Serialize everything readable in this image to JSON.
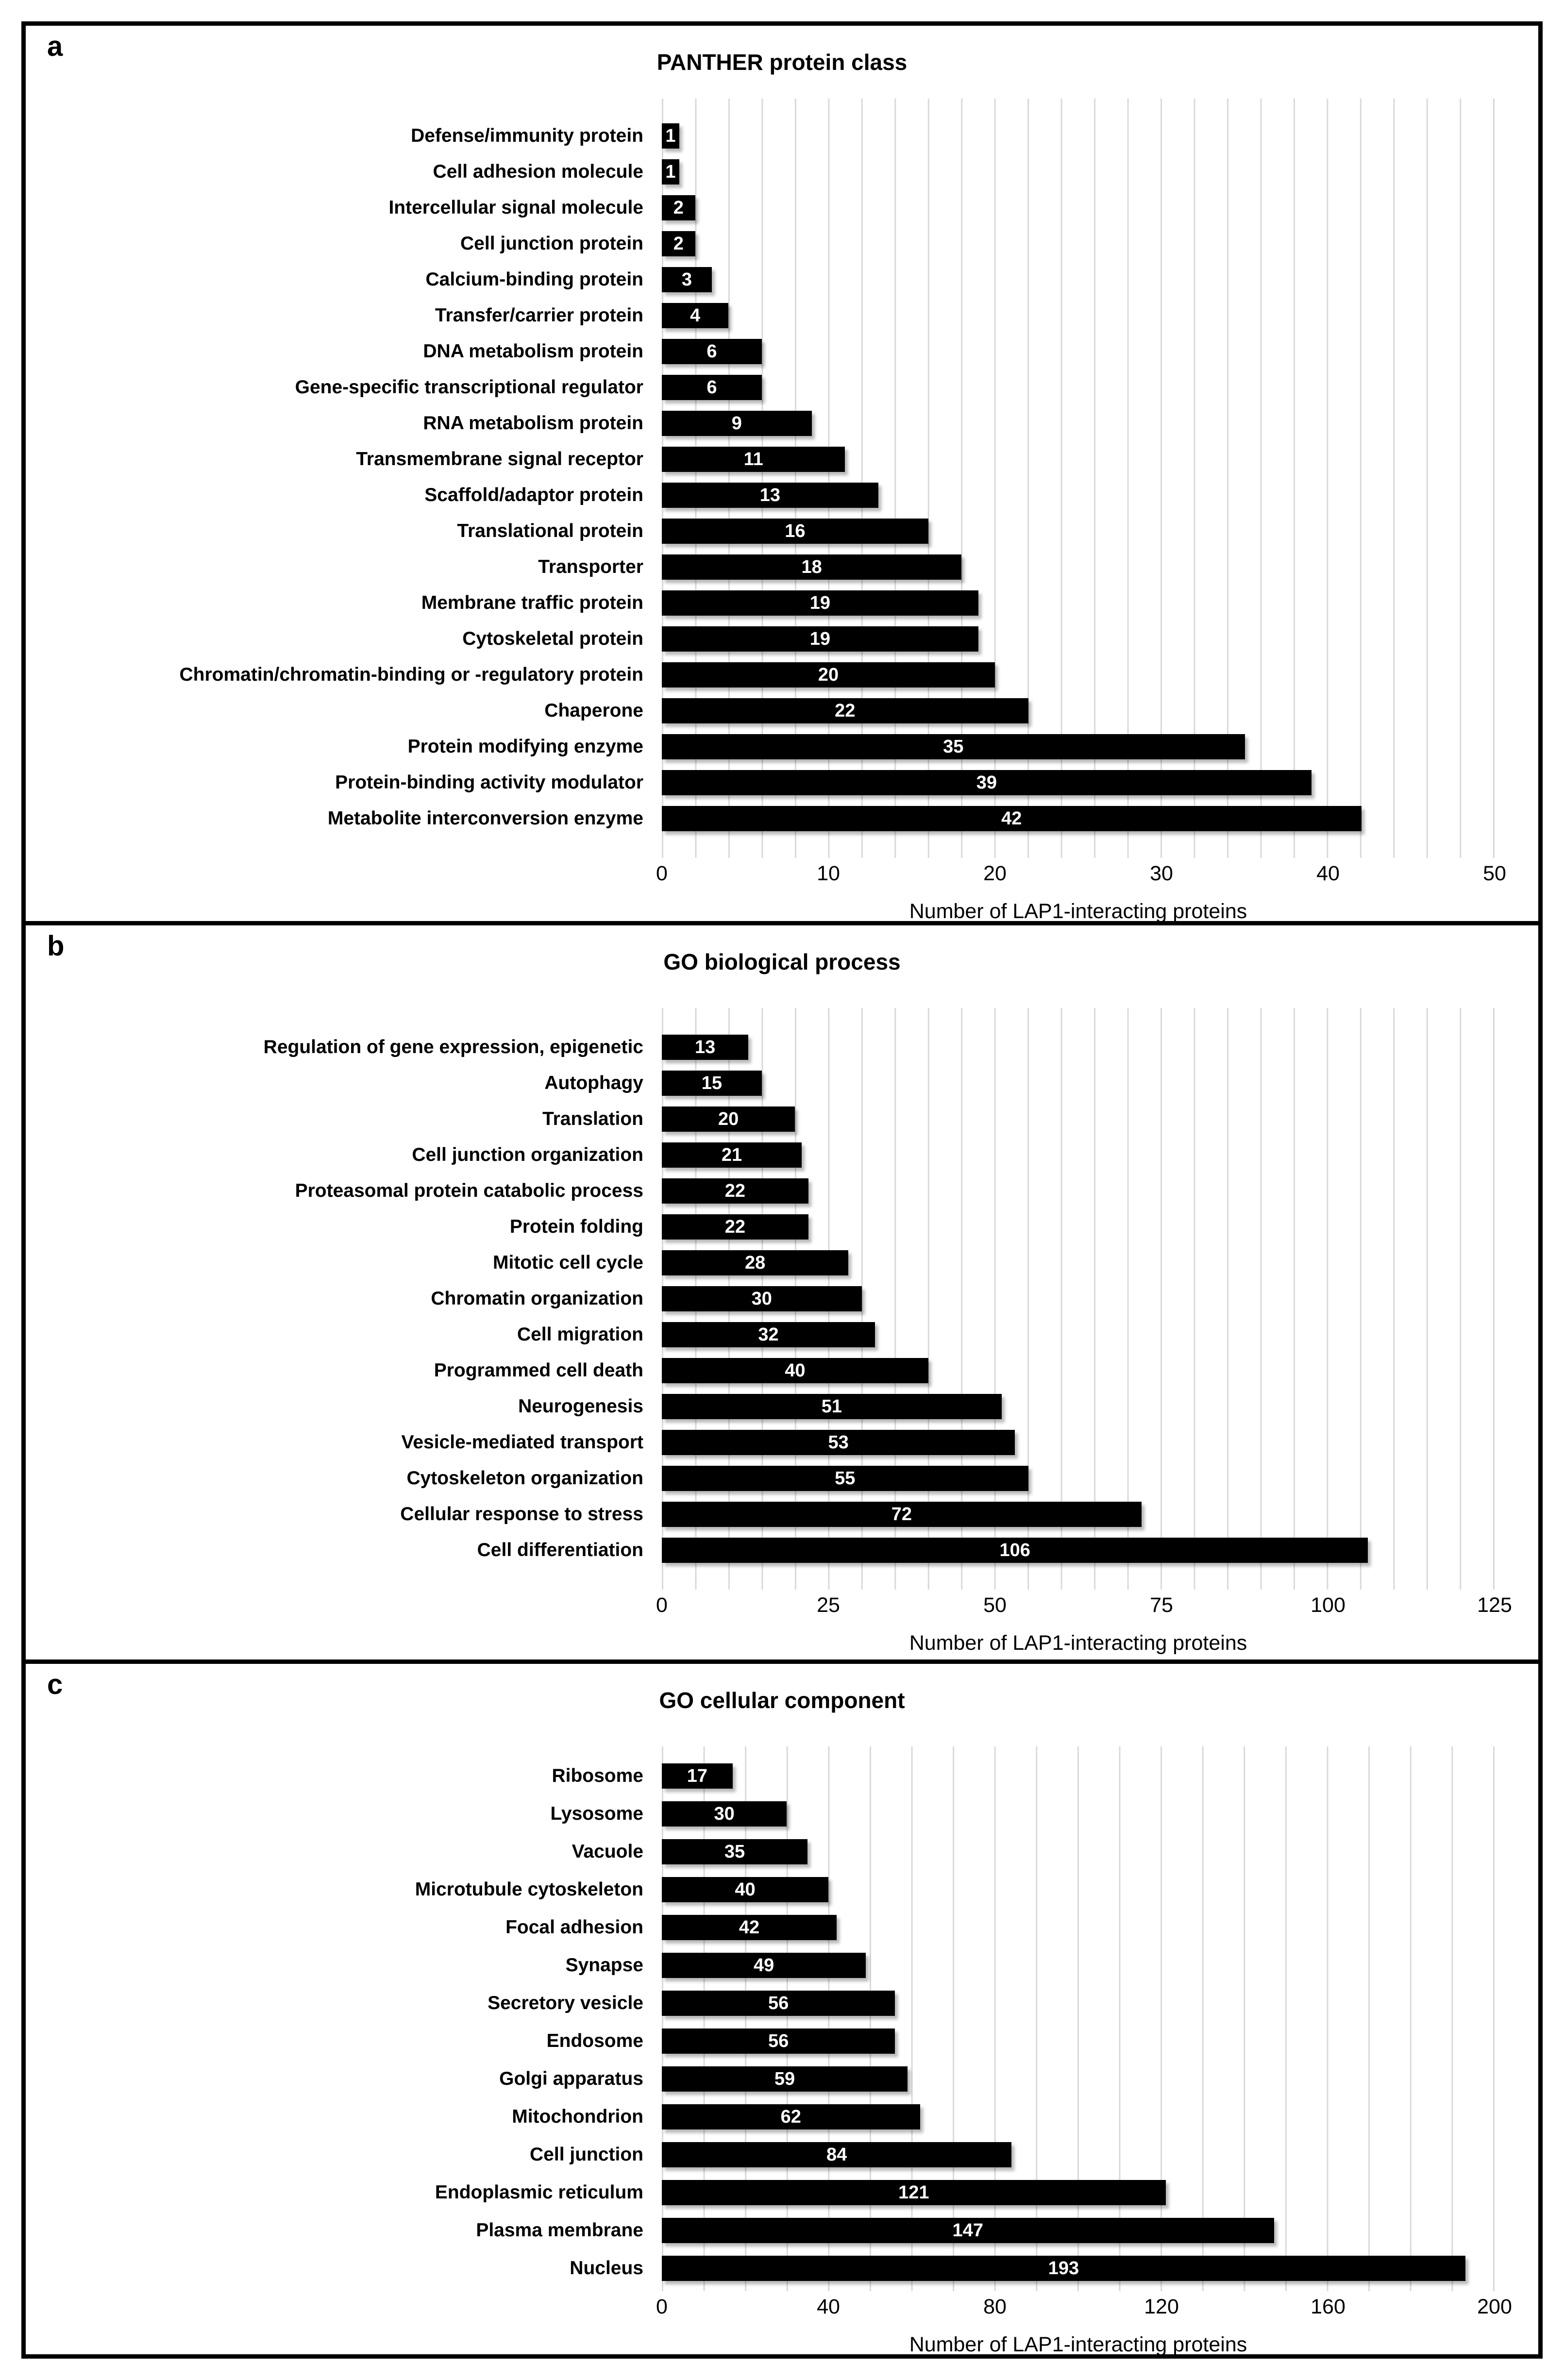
{
  "chart_data": [
    {
      "panel_letter": "a",
      "type": "bar",
      "orientation": "horizontal",
      "title": "PANTHER protein class",
      "xlabel": "Number of LAP1-interacting proteins",
      "xlim": [
        0,
        50
      ],
      "xticks": [
        0,
        10,
        20,
        30,
        40,
        50
      ],
      "minor_gridline_step": 2,
      "grid": "vertical-minor",
      "bar_color": "#000000",
      "value_label_color": "#ffffff",
      "categories": [
        "Defense/immunity protein",
        "Cell adhesion molecule",
        "Intercellular signal molecule",
        "Cell junction protein",
        "Calcium-binding protein",
        "Transfer/carrier protein",
        "DNA metabolism protein",
        "Gene-specific transcriptional regulator",
        "RNA metabolism protein",
        "Transmembrane signal receptor",
        "Scaffold/adaptor protein",
        "Translational protein",
        "Transporter",
        "Membrane traffic protein",
        "Cytoskeletal protein",
        "Chromatin/chromatin-binding or -regulatory protein",
        "Chaperone",
        "Protein modifying enzyme",
        "Protein-binding activity modulator",
        "Metabolite interconversion enzyme"
      ],
      "values": [
        1,
        1,
        2,
        2,
        3,
        4,
        6,
        6,
        9,
        11,
        13,
        16,
        18,
        19,
        19,
        20,
        22,
        35,
        39,
        42
      ]
    },
    {
      "panel_letter": "b",
      "type": "bar",
      "orientation": "horizontal",
      "title": "GO biological process",
      "xlabel": "Number of LAP1-interacting proteins",
      "xlim": [
        0,
        125
      ],
      "xticks": [
        0,
        25,
        50,
        75,
        100,
        125
      ],
      "minor_gridline_step": 5,
      "grid": "vertical-minor",
      "bar_color": "#000000",
      "value_label_color": "#ffffff",
      "categories": [
        "Regulation of gene expression, epigenetic",
        "Autophagy",
        "Translation",
        "Cell junction organization",
        "Proteasomal protein catabolic process",
        "Protein folding",
        "Mitotic cell cycle",
        "Chromatin organization",
        "Cell migration",
        "Programmed cell death",
        "Neurogenesis",
        "Vesicle-mediated transport",
        "Cytoskeleton organization",
        "Cellular response to stress",
        "Cell differentiation"
      ],
      "values": [
        13,
        15,
        20,
        21,
        22,
        22,
        28,
        30,
        32,
        40,
        51,
        53,
        55,
        72,
        106
      ]
    },
    {
      "panel_letter": "c",
      "type": "bar",
      "orientation": "horizontal",
      "title": "GO cellular component",
      "xlabel": "Number of LAP1-interacting proteins",
      "xlim": [
        0,
        200
      ],
      "xticks": [
        0,
        40,
        80,
        120,
        160,
        200
      ],
      "minor_gridline_step": 10,
      "grid": "vertical-minor",
      "bar_color": "#000000",
      "value_label_color": "#ffffff",
      "categories": [
        "Ribosome",
        "Lysosome",
        "Vacuole",
        "Microtubule cytoskeleton",
        "Focal adhesion",
        "Synapse",
        "Secretory vesicle",
        "Endosome",
        "Golgi apparatus",
        "Mitochondrion",
        "Cell junction",
        "Endoplasmic reticulum",
        "Plasma membrane",
        "Nucleus"
      ],
      "values": [
        17,
        30,
        35,
        40,
        42,
        49,
        56,
        56,
        59,
        62,
        84,
        121,
        147,
        193
      ]
    }
  ]
}
